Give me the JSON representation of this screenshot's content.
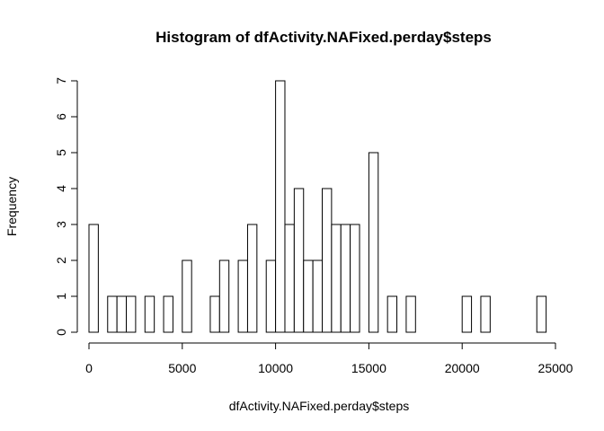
{
  "chart_data": {
    "type": "bar",
    "title": "Histogram of dfActivity.NAFixed.perday$steps",
    "xlabel": "dfActivity.NAFixed.perday$steps",
    "ylabel": "Frequency",
    "xlim": [
      0,
      25000
    ],
    "ylim": [
      0,
      7
    ],
    "x_ticks": [
      0,
      5000,
      10000,
      15000,
      20000,
      25000
    ],
    "y_ticks": [
      0,
      1,
      2,
      3,
      4,
      5,
      6,
      7
    ],
    "bin_width": 500,
    "bins_start": [
      0,
      1000,
      1500,
      2000,
      3000,
      4000,
      5000,
      6500,
      7000,
      8000,
      8500,
      9500,
      10000,
      10500,
      11000,
      11500,
      12000,
      12500,
      13000,
      13500,
      14000,
      15000,
      16000,
      17000,
      20000,
      21000,
      24000
    ],
    "values": [
      3,
      1,
      1,
      1,
      1,
      1,
      2,
      1,
      2,
      2,
      3,
      2,
      7,
      3,
      4,
      2,
      2,
      4,
      3,
      3,
      3,
      5,
      1,
      1,
      1,
      1,
      1
    ],
    "grid": false
  }
}
